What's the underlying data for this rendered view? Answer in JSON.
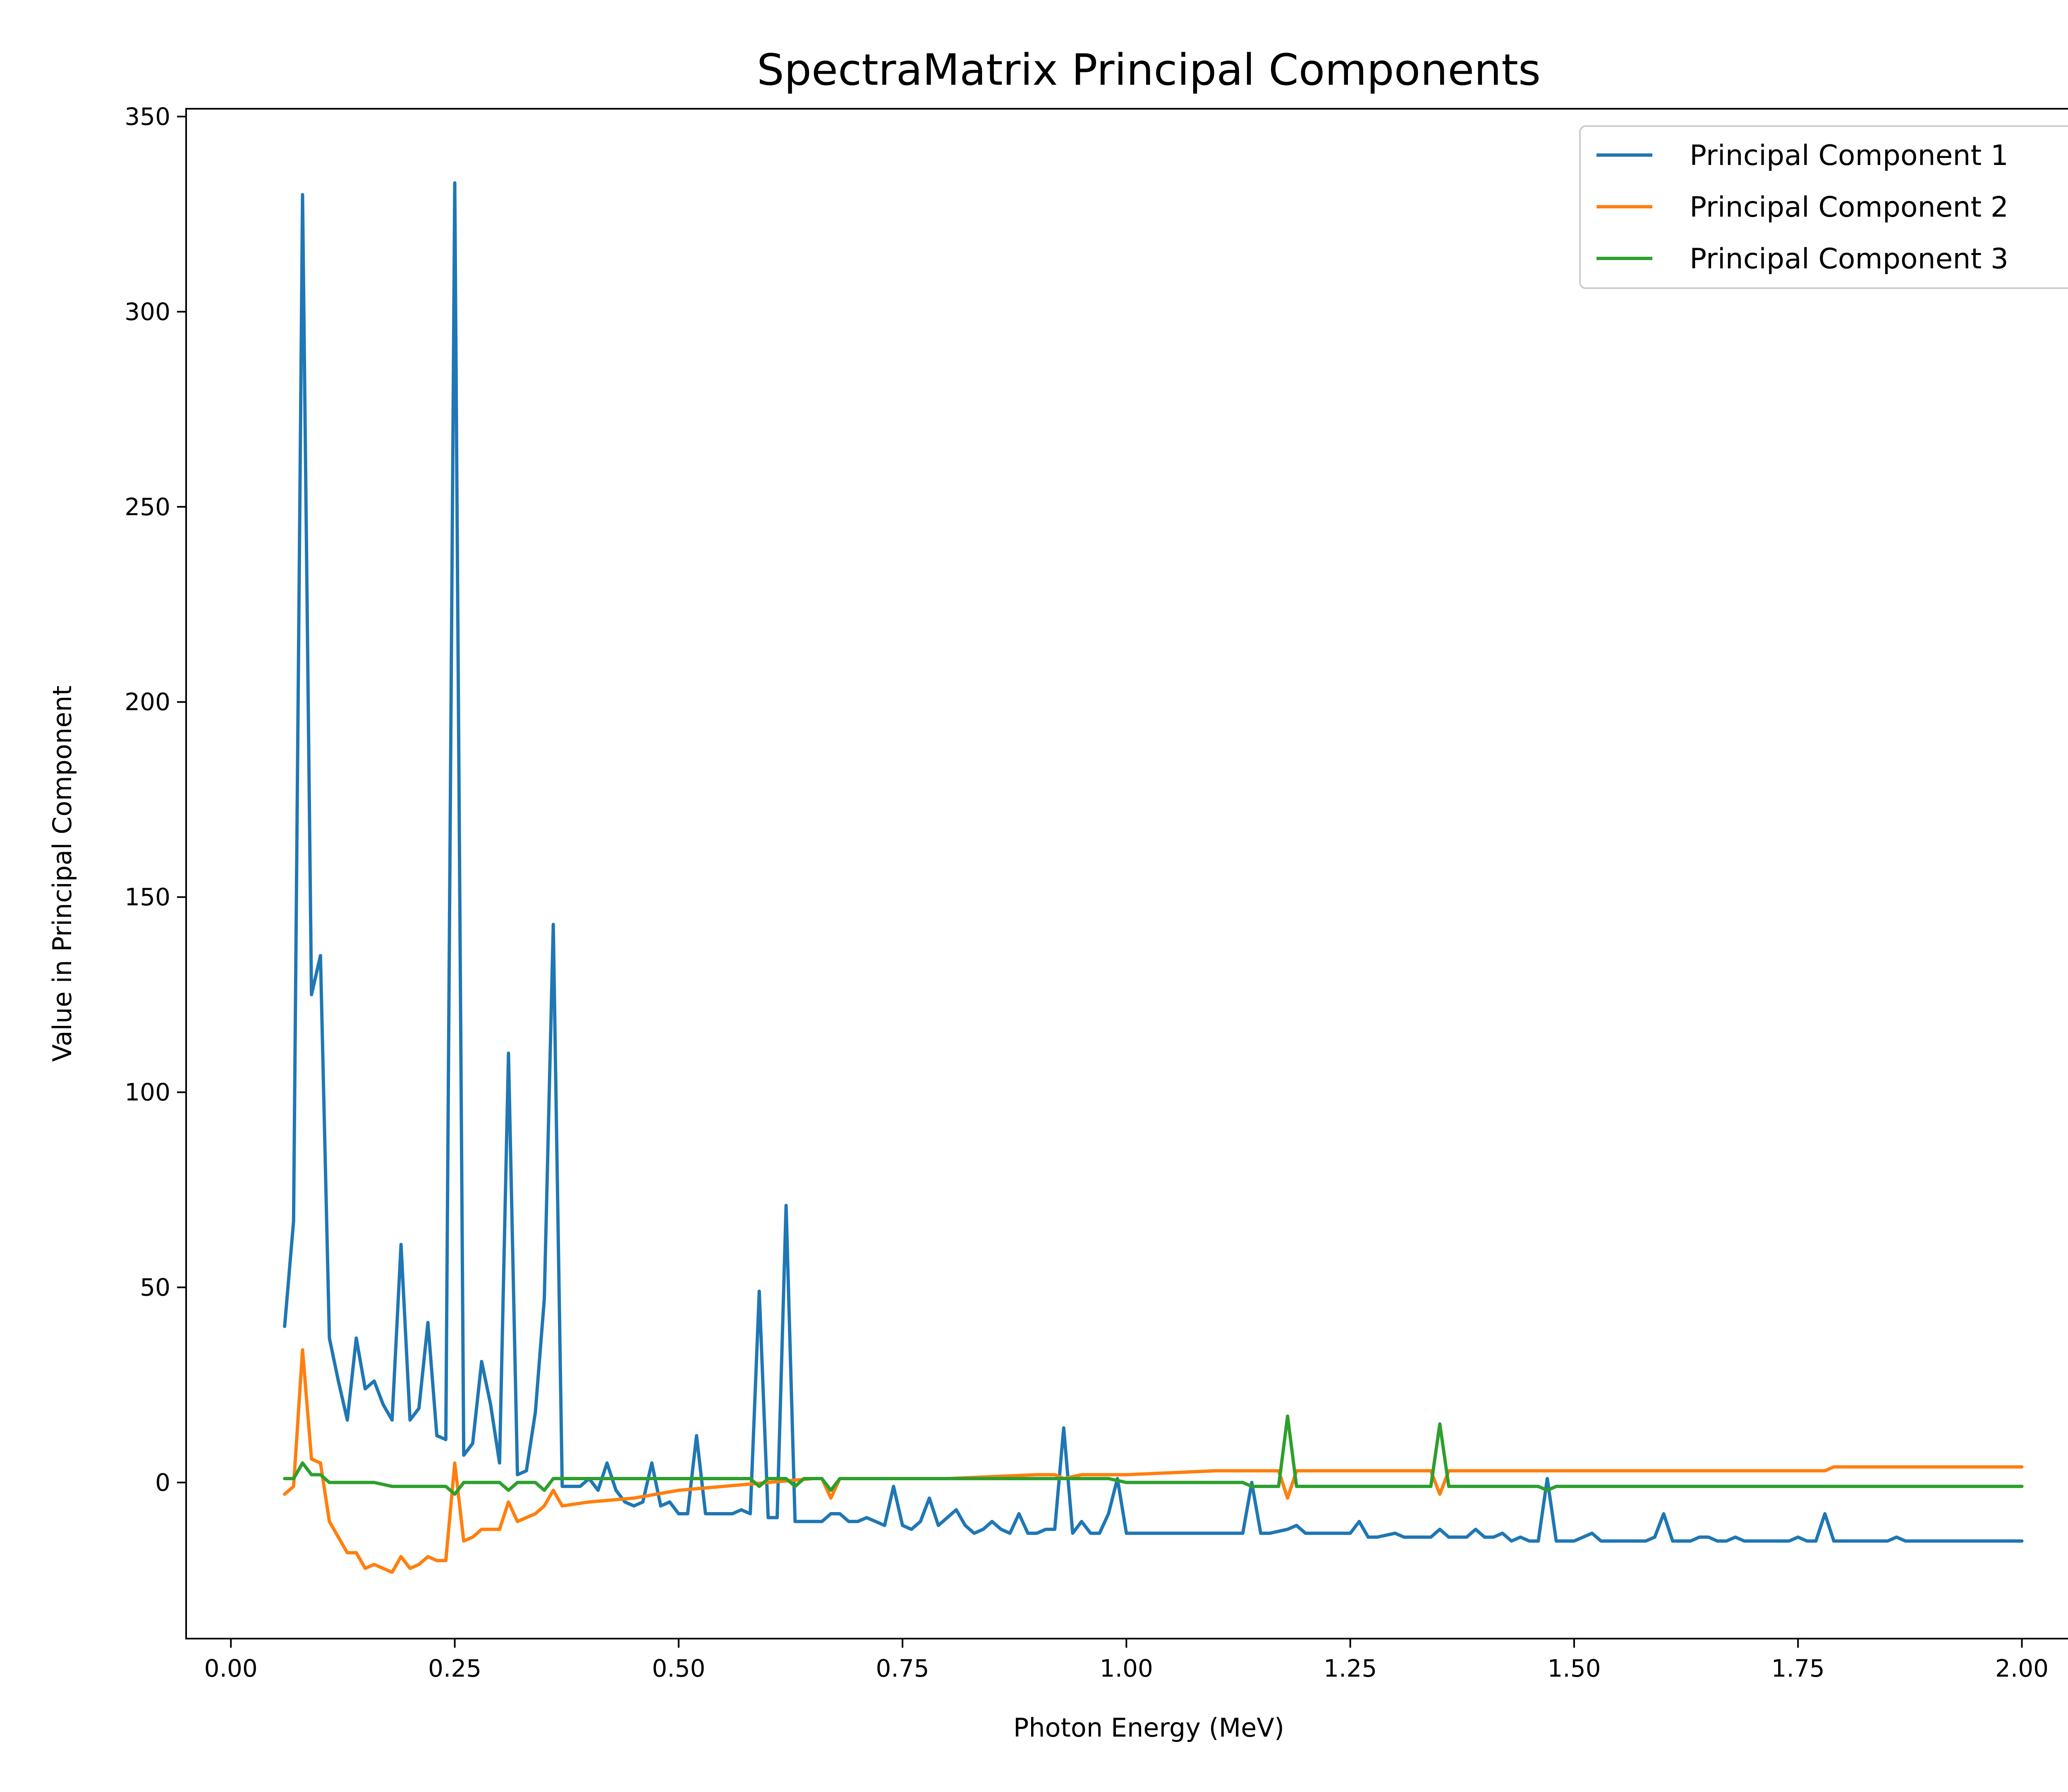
{
  "chart_data": {
    "type": "line",
    "title": "SpectraMatrix Principal Components",
    "xlabel": "Photon Energy (MeV)",
    "ylabel": "Value in Principal Component",
    "xlim": [
      -0.05,
      2.1
    ],
    "ylim": [
      -40,
      352
    ],
    "x_ticks": [
      "0.00",
      "0.25",
      "0.50",
      "0.75",
      "1.00",
      "1.25",
      "1.50",
      "1.75",
      "2.00"
    ],
    "y_ticks": [
      "0",
      "50",
      "100",
      "150",
      "200",
      "250",
      "300",
      "350"
    ],
    "legend_position": "top-right",
    "grid": false,
    "series": [
      {
        "name": "Principal Component 1",
        "color": "#1f77b4",
        "points": [
          [
            0.06,
            40
          ],
          [
            0.07,
            67
          ],
          [
            0.08,
            330
          ],
          [
            0.09,
            125
          ],
          [
            0.1,
            135
          ],
          [
            0.11,
            37
          ],
          [
            0.12,
            26
          ],
          [
            0.13,
            16
          ],
          [
            0.14,
            37
          ],
          [
            0.15,
            24
          ],
          [
            0.16,
            26
          ],
          [
            0.17,
            20
          ],
          [
            0.18,
            16
          ],
          [
            0.19,
            61
          ],
          [
            0.2,
            16
          ],
          [
            0.21,
            19
          ],
          [
            0.22,
            41
          ],
          [
            0.23,
            12
          ],
          [
            0.24,
            11
          ],
          [
            0.25,
            333
          ],
          [
            0.26,
            7
          ],
          [
            0.27,
            10
          ],
          [
            0.28,
            31
          ],
          [
            0.29,
            20
          ],
          [
            0.3,
            5
          ],
          [
            0.31,
            110
          ],
          [
            0.32,
            2
          ],
          [
            0.33,
            3
          ],
          [
            0.34,
            18
          ],
          [
            0.35,
            47
          ],
          [
            0.36,
            143
          ],
          [
            0.37,
            -1
          ],
          [
            0.38,
            -1
          ],
          [
            0.39,
            -1
          ],
          [
            0.4,
            1
          ],
          [
            0.41,
            -2
          ],
          [
            0.42,
            5
          ],
          [
            0.43,
            -2
          ],
          [
            0.44,
            -5
          ],
          [
            0.45,
            -6
          ],
          [
            0.46,
            -5
          ],
          [
            0.47,
            5
          ],
          [
            0.48,
            -6
          ],
          [
            0.49,
            -5
          ],
          [
            0.5,
            -8
          ],
          [
            0.51,
            -8
          ],
          [
            0.52,
            12
          ],
          [
            0.53,
            -8
          ],
          [
            0.54,
            -8
          ],
          [
            0.55,
            -8
          ],
          [
            0.56,
            -8
          ],
          [
            0.57,
            -7
          ],
          [
            0.58,
            -8
          ],
          [
            0.59,
            49
          ],
          [
            0.6,
            -9
          ],
          [
            0.61,
            -9
          ],
          [
            0.62,
            71
          ],
          [
            0.63,
            -10
          ],
          [
            0.64,
            -10
          ],
          [
            0.65,
            -10
          ],
          [
            0.66,
            -10
          ],
          [
            0.67,
            -8
          ],
          [
            0.68,
            -8
          ],
          [
            0.69,
            -10
          ],
          [
            0.7,
            -10
          ],
          [
            0.71,
            -9
          ],
          [
            0.72,
            -10
          ],
          [
            0.73,
            -11
          ],
          [
            0.74,
            -1
          ],
          [
            0.75,
            -11
          ],
          [
            0.76,
            -12
          ],
          [
            0.77,
            -10
          ],
          [
            0.78,
            -4
          ],
          [
            0.79,
            -11
          ],
          [
            0.8,
            -9
          ],
          [
            0.81,
            -7
          ],
          [
            0.82,
            -11
          ],
          [
            0.83,
            -13
          ],
          [
            0.84,
            -12
          ],
          [
            0.85,
            -10
          ],
          [
            0.86,
            -12
          ],
          [
            0.87,
            -13
          ],
          [
            0.88,
            -8
          ],
          [
            0.89,
            -13
          ],
          [
            0.9,
            -13
          ],
          [
            0.91,
            -12
          ],
          [
            0.92,
            -12
          ],
          [
            0.93,
            14
          ],
          [
            0.94,
            -13
          ],
          [
            0.95,
            -10
          ],
          [
            0.96,
            -13
          ],
          [
            0.97,
            -13
          ],
          [
            0.98,
            -8
          ],
          [
            0.99,
            1
          ],
          [
            1.0,
            -13
          ],
          [
            1.01,
            -13
          ],
          [
            1.02,
            -13
          ],
          [
            1.03,
            -13
          ],
          [
            1.04,
            -13
          ],
          [
            1.05,
            -13
          ],
          [
            1.1,
            -13
          ],
          [
            1.13,
            -13
          ],
          [
            1.14,
            0
          ],
          [
            1.15,
            -13
          ],
          [
            1.16,
            -13
          ],
          [
            1.18,
            -12
          ],
          [
            1.19,
            -11
          ],
          [
            1.2,
            -13
          ],
          [
            1.22,
            -13
          ],
          [
            1.24,
            -13
          ],
          [
            1.25,
            -13
          ],
          [
            1.26,
            -10
          ],
          [
            1.27,
            -14
          ],
          [
            1.28,
            -14
          ],
          [
            1.3,
            -13
          ],
          [
            1.31,
            -14
          ],
          [
            1.34,
            -14
          ],
          [
            1.35,
            -12
          ],
          [
            1.36,
            -14
          ],
          [
            1.37,
            -14
          ],
          [
            1.38,
            -14
          ],
          [
            1.39,
            -12
          ],
          [
            1.4,
            -14
          ],
          [
            1.41,
            -14
          ],
          [
            1.42,
            -13
          ],
          [
            1.43,
            -15
          ],
          [
            1.44,
            -14
          ],
          [
            1.45,
            -15
          ],
          [
            1.46,
            -15
          ],
          [
            1.47,
            1
          ],
          [
            1.48,
            -15
          ],
          [
            1.49,
            -15
          ],
          [
            1.5,
            -15
          ],
          [
            1.51,
            -14
          ],
          [
            1.52,
            -13
          ],
          [
            1.53,
            -15
          ],
          [
            1.55,
            -15
          ],
          [
            1.56,
            -15
          ],
          [
            1.57,
            -15
          ],
          [
            1.58,
            -15
          ],
          [
            1.59,
            -14
          ],
          [
            1.6,
            -8
          ],
          [
            1.61,
            -15
          ],
          [
            1.63,
            -15
          ],
          [
            1.64,
            -14
          ],
          [
            1.65,
            -14
          ],
          [
            1.66,
            -15
          ],
          [
            1.67,
            -15
          ],
          [
            1.68,
            -14
          ],
          [
            1.69,
            -15
          ],
          [
            1.7,
            -15
          ],
          [
            1.71,
            -15
          ],
          [
            1.72,
            -15
          ],
          [
            1.73,
            -15
          ],
          [
            1.74,
            -15
          ],
          [
            1.75,
            -14
          ],
          [
            1.76,
            -15
          ],
          [
            1.77,
            -15
          ],
          [
            1.78,
            -8
          ],
          [
            1.79,
            -15
          ],
          [
            1.8,
            -15
          ],
          [
            1.85,
            -15
          ],
          [
            1.86,
            -14
          ],
          [
            1.87,
            -15
          ],
          [
            1.9,
            -15
          ],
          [
            1.95,
            -15
          ],
          [
            2.0,
            -15
          ]
        ]
      },
      {
        "name": "Principal Component 2",
        "color": "#ff7f0e",
        "points": [
          [
            0.06,
            -3
          ],
          [
            0.07,
            -1
          ],
          [
            0.08,
            34
          ],
          [
            0.09,
            6
          ],
          [
            0.1,
            5
          ],
          [
            0.11,
            -10
          ],
          [
            0.12,
            -14
          ],
          [
            0.13,
            -18
          ],
          [
            0.14,
            -18
          ],
          [
            0.15,
            -22
          ],
          [
            0.16,
            -21
          ],
          [
            0.17,
            -22
          ],
          [
            0.18,
            -23
          ],
          [
            0.19,
            -19
          ],
          [
            0.2,
            -22
          ],
          [
            0.21,
            -21
          ],
          [
            0.22,
            -19
          ],
          [
            0.23,
            -20
          ],
          [
            0.24,
            -20
          ],
          [
            0.25,
            5
          ],
          [
            0.26,
            -15
          ],
          [
            0.27,
            -14
          ],
          [
            0.28,
            -12
          ],
          [
            0.29,
            -12
          ],
          [
            0.3,
            -12
          ],
          [
            0.31,
            -5
          ],
          [
            0.32,
            -10
          ],
          [
            0.33,
            -9
          ],
          [
            0.34,
            -8
          ],
          [
            0.35,
            -6
          ],
          [
            0.36,
            -2
          ],
          [
            0.37,
            -6
          ],
          [
            0.4,
            -5
          ],
          [
            0.45,
            -4
          ],
          [
            0.5,
            -2
          ],
          [
            0.55,
            -1
          ],
          [
            0.6,
            0
          ],
          [
            0.65,
            1
          ],
          [
            0.66,
            1
          ],
          [
            0.67,
            -4
          ],
          [
            0.68,
            1
          ],
          [
            0.7,
            1
          ],
          [
            0.8,
            1
          ],
          [
            0.9,
            2
          ],
          [
            0.92,
            2
          ],
          [
            0.93,
            1
          ],
          [
            0.95,
            2
          ],
          [
            1.0,
            2
          ],
          [
            1.1,
            3
          ],
          [
            1.16,
            3
          ],
          [
            1.17,
            3
          ],
          [
            1.18,
            -4
          ],
          [
            1.19,
            3
          ],
          [
            1.25,
            3
          ],
          [
            1.3,
            3
          ],
          [
            1.33,
            3
          ],
          [
            1.34,
            3
          ],
          [
            1.35,
            -3
          ],
          [
            1.36,
            3
          ],
          [
            1.45,
            3
          ],
          [
            1.46,
            3
          ],
          [
            1.47,
            3
          ],
          [
            1.48,
            3
          ],
          [
            1.55,
            3
          ],
          [
            1.58,
            3
          ],
          [
            1.59,
            3
          ],
          [
            1.6,
            3
          ],
          [
            1.61,
            3
          ],
          [
            1.7,
            3
          ],
          [
            1.78,
            3
          ],
          [
            1.79,
            4
          ],
          [
            1.8,
            4
          ],
          [
            1.9,
            4
          ],
          [
            2.0,
            4
          ]
        ]
      },
      {
        "name": "Principal Component 3",
        "color": "#2ca02c",
        "points": [
          [
            0.06,
            1
          ],
          [
            0.07,
            1
          ],
          [
            0.08,
            5
          ],
          [
            0.09,
            2
          ],
          [
            0.1,
            2
          ],
          [
            0.11,
            0
          ],
          [
            0.12,
            0
          ],
          [
            0.14,
            0
          ],
          [
            0.16,
            0
          ],
          [
            0.18,
            -1
          ],
          [
            0.2,
            -1
          ],
          [
            0.22,
            -1
          ],
          [
            0.24,
            -1
          ],
          [
            0.25,
            -3
          ],
          [
            0.26,
            0
          ],
          [
            0.28,
            0
          ],
          [
            0.3,
            0
          ],
          [
            0.31,
            -2
          ],
          [
            0.32,
            0
          ],
          [
            0.34,
            0
          ],
          [
            0.35,
            -2
          ],
          [
            0.36,
            1
          ],
          [
            0.4,
            1
          ],
          [
            0.5,
            1
          ],
          [
            0.58,
            1
          ],
          [
            0.59,
            -1
          ],
          [
            0.6,
            1
          ],
          [
            0.62,
            1
          ],
          [
            0.63,
            -1
          ],
          [
            0.64,
            1
          ],
          [
            0.66,
            1
          ],
          [
            0.67,
            -2
          ],
          [
            0.68,
            1
          ],
          [
            0.75,
            1
          ],
          [
            0.8,
            1
          ],
          [
            0.9,
            1
          ],
          [
            0.95,
            1
          ],
          [
            0.98,
            1
          ],
          [
            1.0,
            0
          ],
          [
            1.1,
            0
          ],
          [
            1.13,
            0
          ],
          [
            1.14,
            -1
          ],
          [
            1.17,
            -1
          ],
          [
            1.18,
            17
          ],
          [
            1.19,
            -1
          ],
          [
            1.25,
            -1
          ],
          [
            1.3,
            -1
          ],
          [
            1.33,
            -1
          ],
          [
            1.34,
            -1
          ],
          [
            1.35,
            15
          ],
          [
            1.36,
            -1
          ],
          [
            1.4,
            -1
          ],
          [
            1.45,
            -1
          ],
          [
            1.46,
            -1
          ],
          [
            1.47,
            -2
          ],
          [
            1.48,
            -1
          ],
          [
            1.6,
            -1
          ],
          [
            1.7,
            -1
          ],
          [
            1.78,
            -1
          ],
          [
            1.8,
            -1
          ],
          [
            1.9,
            -1
          ],
          [
            2.0,
            -1
          ]
        ]
      }
    ]
  }
}
